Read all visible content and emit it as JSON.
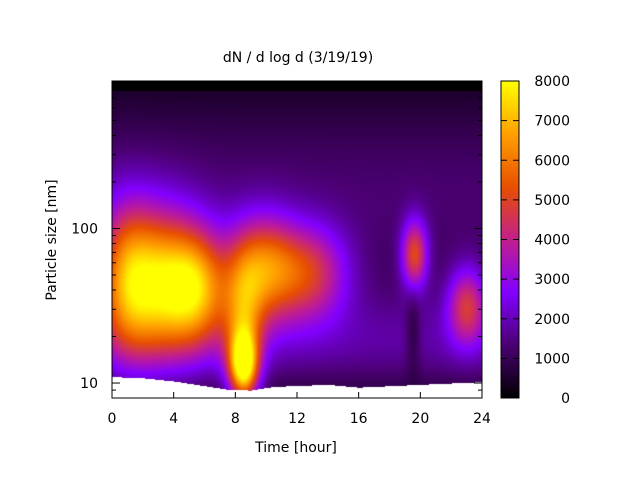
{
  "chart_data": {
    "type": "heatmap",
    "title": "dN / d log d (3/19/19)",
    "xlabel": "Time [hour]",
    "ylabel": "Particle size [nm]",
    "xlim": [
      0,
      24
    ],
    "ylim": [
      8,
      900
    ],
    "yscale": "log",
    "x_ticks": [
      0,
      4,
      8,
      12,
      16,
      20,
      24
    ],
    "y_ticks": [
      10,
      100
    ],
    "colorbar": {
      "range": [
        0,
        8000
      ],
      "ticks": [
        0,
        1000,
        2000,
        3000,
        4000,
        5000,
        6000,
        7000,
        8000
      ],
      "colormap": [
        "#000000",
        "#4b0073",
        "#8200ff",
        "#c21f8c",
        "#e85000",
        "#ffa000",
        "#ffff00"
      ]
    },
    "background": "#000000",
    "blobs": [
      {
        "t": 2.5,
        "d": 45,
        "peak": 6000,
        "st": 2.2,
        "sd": 0.33
      },
      {
        "t": 0.8,
        "d": 50,
        "peak": 1800,
        "st": 1.2,
        "sd": 0.35
      },
      {
        "t": 5.5,
        "d": 42,
        "peak": 4400,
        "st": 1.5,
        "sd": 0.26
      },
      {
        "t": 8.5,
        "d": 13,
        "peak": 6200,
        "st": 0.65,
        "sd": 0.15
      },
      {
        "t": 8.5,
        "d": 26,
        "peak": 3200,
        "st": 0.9,
        "sd": 0.3
      },
      {
        "t": 9.8,
        "d": 55,
        "peak": 4300,
        "st": 1.5,
        "sd": 0.24
      },
      {
        "t": 12.8,
        "d": 52,
        "peak": 3500,
        "st": 1.8,
        "sd": 0.22
      },
      {
        "t": 19.6,
        "d": 68,
        "peak": 4000,
        "st": 0.6,
        "sd": 0.16
      },
      {
        "t": 23.0,
        "d": 32,
        "peak": 3300,
        "st": 0.9,
        "sd": 0.18
      }
    ],
    "plateaus": [
      {
        "t0": 0,
        "t1": 24,
        "d": 18,
        "level": 1500,
        "sd": 0.25
      },
      {
        "t0": 0,
        "t1": 24,
        "d": 110,
        "level": 900,
        "sd": 0.5
      },
      {
        "t0": 0,
        "t1": 24,
        "d": 280,
        "level": 500,
        "sd": 0.45
      }
    ],
    "lower_cutoff": [
      {
        "t": 0,
        "d": 11
      },
      {
        "t": 2,
        "d": 10.8
      },
      {
        "t": 4,
        "d": 10.3
      },
      {
        "t": 6,
        "d": 9.6
      },
      {
        "t": 7.5,
        "d": 9.1
      },
      {
        "t": 9,
        "d": 9.0
      },
      {
        "t": 10.5,
        "d": 9.5
      },
      {
        "t": 14,
        "d": 9.8
      },
      {
        "t": 16,
        "d": 9.4
      },
      {
        "t": 18,
        "d": 9.6
      },
      {
        "t": 20,
        "d": 9.8
      },
      {
        "t": 22,
        "d": 10.0
      },
      {
        "t": 24,
        "d": 10.2
      }
    ],
    "upper_cutoff_d": 780
  }
}
